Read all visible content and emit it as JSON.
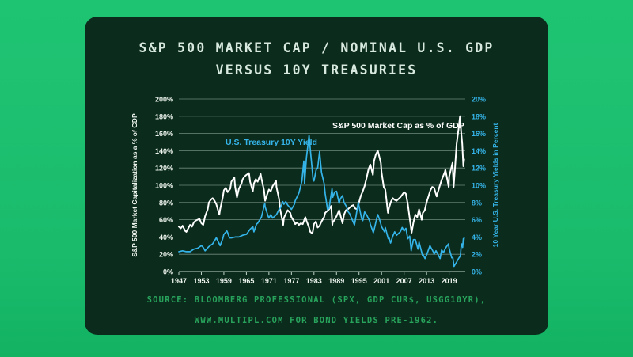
{
  "card": {
    "title_line1": "S&P 500 MARKET CAP / NOMINAL U.S. GDP",
    "title_line2": "VERSUS 10Y TREASURIES",
    "source_line1": "SOURCE: BLOOMBERG PROFESSIONAL (SPX, GDP CUR$, USGG10YR),",
    "source_line2": "WWW.MULTIPL.COM FOR BOND YIELDS PRE-1962."
  },
  "colors": {
    "page_background": "#1abc6c",
    "card_background": "#0b2b1c",
    "title_text": "#d8e9df",
    "source_text": "#28a35c",
    "grid": "rgba(214,234,224,0.5)",
    "axis": "rgba(214,234,224,0.9)",
    "tick_left": "#eef5f0",
    "tick_right": "#35b4e9",
    "sp500_line": "#ffffff",
    "treasury_line": "#35b4e9"
  },
  "chart_data": {
    "type": "line",
    "title": "S&P 500 MARKET CAP / NOMINAL U.S. GDP VERSUS 10Y TREASURIES",
    "grid": true,
    "legend": "inline-labels",
    "x_axis": {
      "range": [
        1947,
        2023.3
      ],
      "ticks": [
        "1947",
        "1953",
        "1959",
        "1965",
        "1971",
        "1977",
        "1983",
        "1989",
        "1995",
        "2001",
        "2007",
        "2013",
        "2019"
      ]
    },
    "left_axis": {
      "label": "S&P 500 Market Capitalization as a % of GDP",
      "range": [
        0,
        200
      ],
      "ticks": [
        "0%",
        "20%",
        "40%",
        "60%",
        "80%",
        "100%",
        "120%",
        "140%",
        "160%",
        "180%",
        "200%"
      ]
    },
    "right_axis": {
      "label": "10 Year U.S. Treasury Yields in Percent",
      "range": [
        0,
        20
      ],
      "ticks": [
        "0%",
        "2%",
        "4%",
        "6%",
        "8%",
        "10%",
        "12%",
        "14%",
        "16%",
        "18%",
        "20%"
      ]
    },
    "series": [
      {
        "name": "S&P 500 Market Cap as % of GDP",
        "axis": "left",
        "color": "#ffffff",
        "points": [
          [
            1947,
            52
          ],
          [
            1947.5,
            50
          ],
          [
            1948,
            53
          ],
          [
            1948.7,
            47
          ],
          [
            1949,
            46
          ],
          [
            1949.5,
            50
          ],
          [
            1950,
            54
          ],
          [
            1950.5,
            52
          ],
          [
            1951,
            57
          ],
          [
            1951.5,
            59
          ],
          [
            1952,
            60
          ],
          [
            1952.5,
            61
          ],
          [
            1953,
            56
          ],
          [
            1953.5,
            54
          ],
          [
            1954,
            64
          ],
          [
            1954.7,
            72
          ],
          [
            1955,
            80
          ],
          [
            1955.5,
            83
          ],
          [
            1956,
            85
          ],
          [
            1956.5,
            82
          ],
          [
            1957,
            78
          ],
          [
            1957.8,
            66
          ],
          [
            1958,
            72
          ],
          [
            1958.7,
            86
          ],
          [
            1959,
            94
          ],
          [
            1959.5,
            97
          ],
          [
            1960,
            92
          ],
          [
            1960.7,
            96
          ],
          [
            1961,
            104
          ],
          [
            1961.8,
            109
          ],
          [
            1962,
            98
          ],
          [
            1962.5,
            86
          ],
          [
            1963,
            96
          ],
          [
            1963.7,
            102
          ],
          [
            1964,
            107
          ],
          [
            1964.5,
            110
          ],
          [
            1965,
            112
          ],
          [
            1965.7,
            114
          ],
          [
            1966,
            104
          ],
          [
            1966.7,
            93
          ],
          [
            1967,
            102
          ],
          [
            1967.5,
            107
          ],
          [
            1968,
            104
          ],
          [
            1968.8,
            113
          ],
          [
            1969,
            108
          ],
          [
            1969.7,
            94
          ],
          [
            1970,
            82
          ],
          [
            1970.5,
            89
          ],
          [
            1971,
            95
          ],
          [
            1971.5,
            93
          ],
          [
            1972,
            99
          ],
          [
            1972.9,
            105
          ],
          [
            1973,
            98
          ],
          [
            1973.7,
            84
          ],
          [
            1974,
            72
          ],
          [
            1974.8,
            54
          ],
          [
            1975,
            62
          ],
          [
            1975.5,
            67
          ],
          [
            1976,
            71
          ],
          [
            1976.7,
            68
          ],
          [
            1977,
            63
          ],
          [
            1977.7,
            58
          ],
          [
            1978,
            55
          ],
          [
            1978.5,
            57
          ],
          [
            1979,
            54
          ],
          [
            1979.5,
            56
          ],
          [
            1980,
            55
          ],
          [
            1980.7,
            63
          ],
          [
            1981,
            59
          ],
          [
            1981.7,
            51
          ],
          [
            1982,
            46
          ],
          [
            1982.6,
            44
          ],
          [
            1983,
            55
          ],
          [
            1983.5,
            58
          ],
          [
            1984,
            51
          ],
          [
            1984.5,
            53
          ],
          [
            1985,
            58
          ],
          [
            1985.7,
            63
          ],
          [
            1986,
            68
          ],
          [
            1986.5,
            70
          ],
          [
            1987,
            72
          ],
          [
            1987.6,
            76
          ],
          [
            1987.9,
            54
          ],
          [
            1988,
            57
          ],
          [
            1988.5,
            60
          ],
          [
            1989,
            64
          ],
          [
            1989.7,
            71
          ],
          [
            1990,
            66
          ],
          [
            1990.6,
            56
          ],
          [
            1991,
            66
          ],
          [
            1991.5,
            71
          ],
          [
            1992,
            72
          ],
          [
            1992.5,
            74
          ],
          [
            1993,
            76
          ],
          [
            1993.5,
            77
          ],
          [
            1994,
            73
          ],
          [
            1994.5,
            72
          ],
          [
            1995,
            80
          ],
          [
            1995.5,
            88
          ],
          [
            1996,
            93
          ],
          [
            1996.5,
            99
          ],
          [
            1997,
            108
          ],
          [
            1997.5,
            118
          ],
          [
            1998,
            124
          ],
          [
            1998.7,
            112
          ],
          [
            1999,
            128
          ],
          [
            1999.5,
            136
          ],
          [
            2000,
            140
          ],
          [
            2000.4,
            133
          ],
          [
            2000.8,
            126
          ],
          [
            2001,
            115
          ],
          [
            2001.6,
            98
          ],
          [
            2002,
            95
          ],
          [
            2002.7,
            68
          ],
          [
            2003,
            74
          ],
          [
            2003.5,
            81
          ],
          [
            2004,
            85
          ],
          [
            2004.5,
            83
          ],
          [
            2005,
            82
          ],
          [
            2005.5,
            84
          ],
          [
            2006,
            86
          ],
          [
            2006.5,
            89
          ],
          [
            2007,
            92
          ],
          [
            2007.5,
            90
          ],
          [
            2008,
            78
          ],
          [
            2008.8,
            52
          ],
          [
            2009,
            45
          ],
          [
            2009.5,
            57
          ],
          [
            2010,
            66
          ],
          [
            2010.5,
            63
          ],
          [
            2011,
            72
          ],
          [
            2011.7,
            60
          ],
          [
            2012,
            68
          ],
          [
            2012.5,
            71
          ],
          [
            2013,
            80
          ],
          [
            2013.7,
            90
          ],
          [
            2014,
            94
          ],
          [
            2014.5,
            98
          ],
          [
            2015,
            97
          ],
          [
            2015.7,
            87
          ],
          [
            2016,
            92
          ],
          [
            2016.5,
            99
          ],
          [
            2017,
            106
          ],
          [
            2017.9,
            116
          ],
          [
            2018,
            118
          ],
          [
            2018.9,
            98
          ],
          [
            2019,
            110
          ],
          [
            2019.9,
            126
          ],
          [
            2020.2,
            98
          ],
          [
            2020.6,
            122
          ],
          [
            2021,
            148
          ],
          [
            2021.5,
            165
          ],
          [
            2021.9,
            180
          ],
          [
            2022.2,
            162
          ],
          [
            2022.5,
            148
          ],
          [
            2022.8,
            122
          ],
          [
            2023,
            130
          ]
        ]
      },
      {
        "name": "U.S. Treasury 10Y Yield",
        "axis": "right",
        "color": "#35b4e9",
        "points": [
          [
            1947,
            2.3
          ],
          [
            1948,
            2.4
          ],
          [
            1949,
            2.3
          ],
          [
            1950,
            2.3
          ],
          [
            1951,
            2.6
          ],
          [
            1952,
            2.7
          ],
          [
            1953,
            3.0
          ],
          [
            1953.5,
            2.8
          ],
          [
            1954,
            2.4
          ],
          [
            1955,
            2.9
          ],
          [
            1956,
            3.2
          ],
          [
            1957,
            3.9
          ],
          [
            1957.8,
            3.2
          ],
          [
            1958,
            3.0
          ],
          [
            1958.7,
            3.8
          ],
          [
            1959,
            4.3
          ],
          [
            1959.8,
            4.7
          ],
          [
            1960,
            4.5
          ],
          [
            1960.5,
            3.9
          ],
          [
            1961,
            3.9
          ],
          [
            1962,
            4.0
          ],
          [
            1963,
            4.0
          ],
          [
            1964,
            4.2
          ],
          [
            1965,
            4.3
          ],
          [
            1966,
            4.9
          ],
          [
            1966.7,
            5.2
          ],
          [
            1967,
            4.6
          ],
          [
            1967.7,
            5.5
          ],
          [
            1968,
            5.6
          ],
          [
            1969,
            6.3
          ],
          [
            1969.9,
            7.9
          ],
          [
            1970,
            7.5
          ],
          [
            1970.8,
            6.4
          ],
          [
            1971,
            6.2
          ],
          [
            1971.5,
            6.6
          ],
          [
            1972,
            6.2
          ],
          [
            1973,
            6.6
          ],
          [
            1973.7,
            7.2
          ],
          [
            1974,
            7.3
          ],
          [
            1974.7,
            8.1
          ],
          [
            1975,
            7.8
          ],
          [
            1975.5,
            8.1
          ],
          [
            1976,
            7.7
          ],
          [
            1977,
            7.2
          ],
          [
            1977.8,
            7.8
          ],
          [
            1978,
            8.2
          ],
          [
            1979,
            9.1
          ],
          [
            1979.8,
            10.5
          ],
          [
            1980,
            11.5
          ],
          [
            1980.3,
            12.8
          ],
          [
            1980.5,
            10.2
          ],
          [
            1981,
            13.2
          ],
          [
            1981.7,
            15.8
          ],
          [
            1982,
            14.2
          ],
          [
            1982.8,
            10.5
          ],
          [
            1983,
            10.5
          ],
          [
            1983.6,
            11.8
          ],
          [
            1984,
            12.0
          ],
          [
            1984.5,
            13.9
          ],
          [
            1985,
            11.5
          ],
          [
            1985.7,
            10.2
          ],
          [
            1986,
            9.0
          ],
          [
            1986.6,
            7.2
          ],
          [
            1987,
            7.3
          ],
          [
            1987.8,
            9.6
          ],
          [
            1988,
            8.6
          ],
          [
            1988.5,
            9.2
          ],
          [
            1989,
            9.3
          ],
          [
            1989.7,
            7.9
          ],
          [
            1990,
            8.4
          ],
          [
            1990.6,
            8.8
          ],
          [
            1991,
            8.0
          ],
          [
            1991.7,
            7.5
          ],
          [
            1992,
            7.0
          ],
          [
            1992.5,
            6.7
          ],
          [
            1993,
            6.2
          ],
          [
            1993.8,
            5.4
          ],
          [
            1994,
            5.9
          ],
          [
            1994.8,
            8.0
          ],
          [
            1995,
            7.6
          ],
          [
            1995.7,
            6.1
          ],
          [
            1996,
            5.9
          ],
          [
            1996.5,
            6.9
          ],
          [
            1997,
            6.6
          ],
          [
            1997.8,
            5.9
          ],
          [
            1998,
            5.5
          ],
          [
            1998.8,
            4.5
          ],
          [
            1999,
            4.8
          ],
          [
            1999.8,
            6.3
          ],
          [
            2000,
            6.6
          ],
          [
            2000.5,
            6.0
          ],
          [
            2001,
            5.2
          ],
          [
            2001.8,
            4.6
          ],
          [
            2002,
            5.1
          ],
          [
            2002.8,
            3.8
          ],
          [
            2003,
            3.9
          ],
          [
            2003.4,
            3.3
          ],
          [
            2004,
            4.1
          ],
          [
            2004.5,
            4.6
          ],
          [
            2005,
            4.2
          ],
          [
            2005.5,
            4.4
          ],
          [
            2006,
            4.6
          ],
          [
            2006.5,
            5.1
          ],
          [
            2007,
            4.7
          ],
          [
            2007.5,
            5.0
          ],
          [
            2008,
            3.8
          ],
          [
            2008.5,
            4.1
          ],
          [
            2008.9,
            2.4
          ],
          [
            2009,
            2.7
          ],
          [
            2009.5,
            3.7
          ],
          [
            2010,
            3.7
          ],
          [
            2010.7,
            2.6
          ],
          [
            2011,
            3.4
          ],
          [
            2011.9,
            1.9
          ],
          [
            2012,
            2.0
          ],
          [
            2012.6,
            1.5
          ],
          [
            2013,
            1.9
          ],
          [
            2013.9,
            3.0
          ],
          [
            2014,
            2.9
          ],
          [
            2014.9,
            2.2
          ],
          [
            2015,
            2.0
          ],
          [
            2015.5,
            2.4
          ],
          [
            2016,
            2.0
          ],
          [
            2016.6,
            1.5
          ],
          [
            2017,
            2.5
          ],
          [
            2017.5,
            2.2
          ],
          [
            2018,
            2.7
          ],
          [
            2018.8,
            3.2
          ],
          [
            2019,
            2.7
          ],
          [
            2019.7,
            1.6
          ],
          [
            2020,
            1.6
          ],
          [
            2020.3,
            0.6
          ],
          [
            2021,
            1.1
          ],
          [
            2021.5,
            1.5
          ],
          [
            2022,
            1.8
          ],
          [
            2022.2,
            2.9
          ],
          [
            2022.4,
            3.2
          ],
          [
            2022.6,
            2.8
          ],
          [
            2022.8,
            3.8
          ],
          [
            2022.9,
            3.5
          ],
          [
            2023,
            3.9
          ]
        ]
      }
    ]
  }
}
